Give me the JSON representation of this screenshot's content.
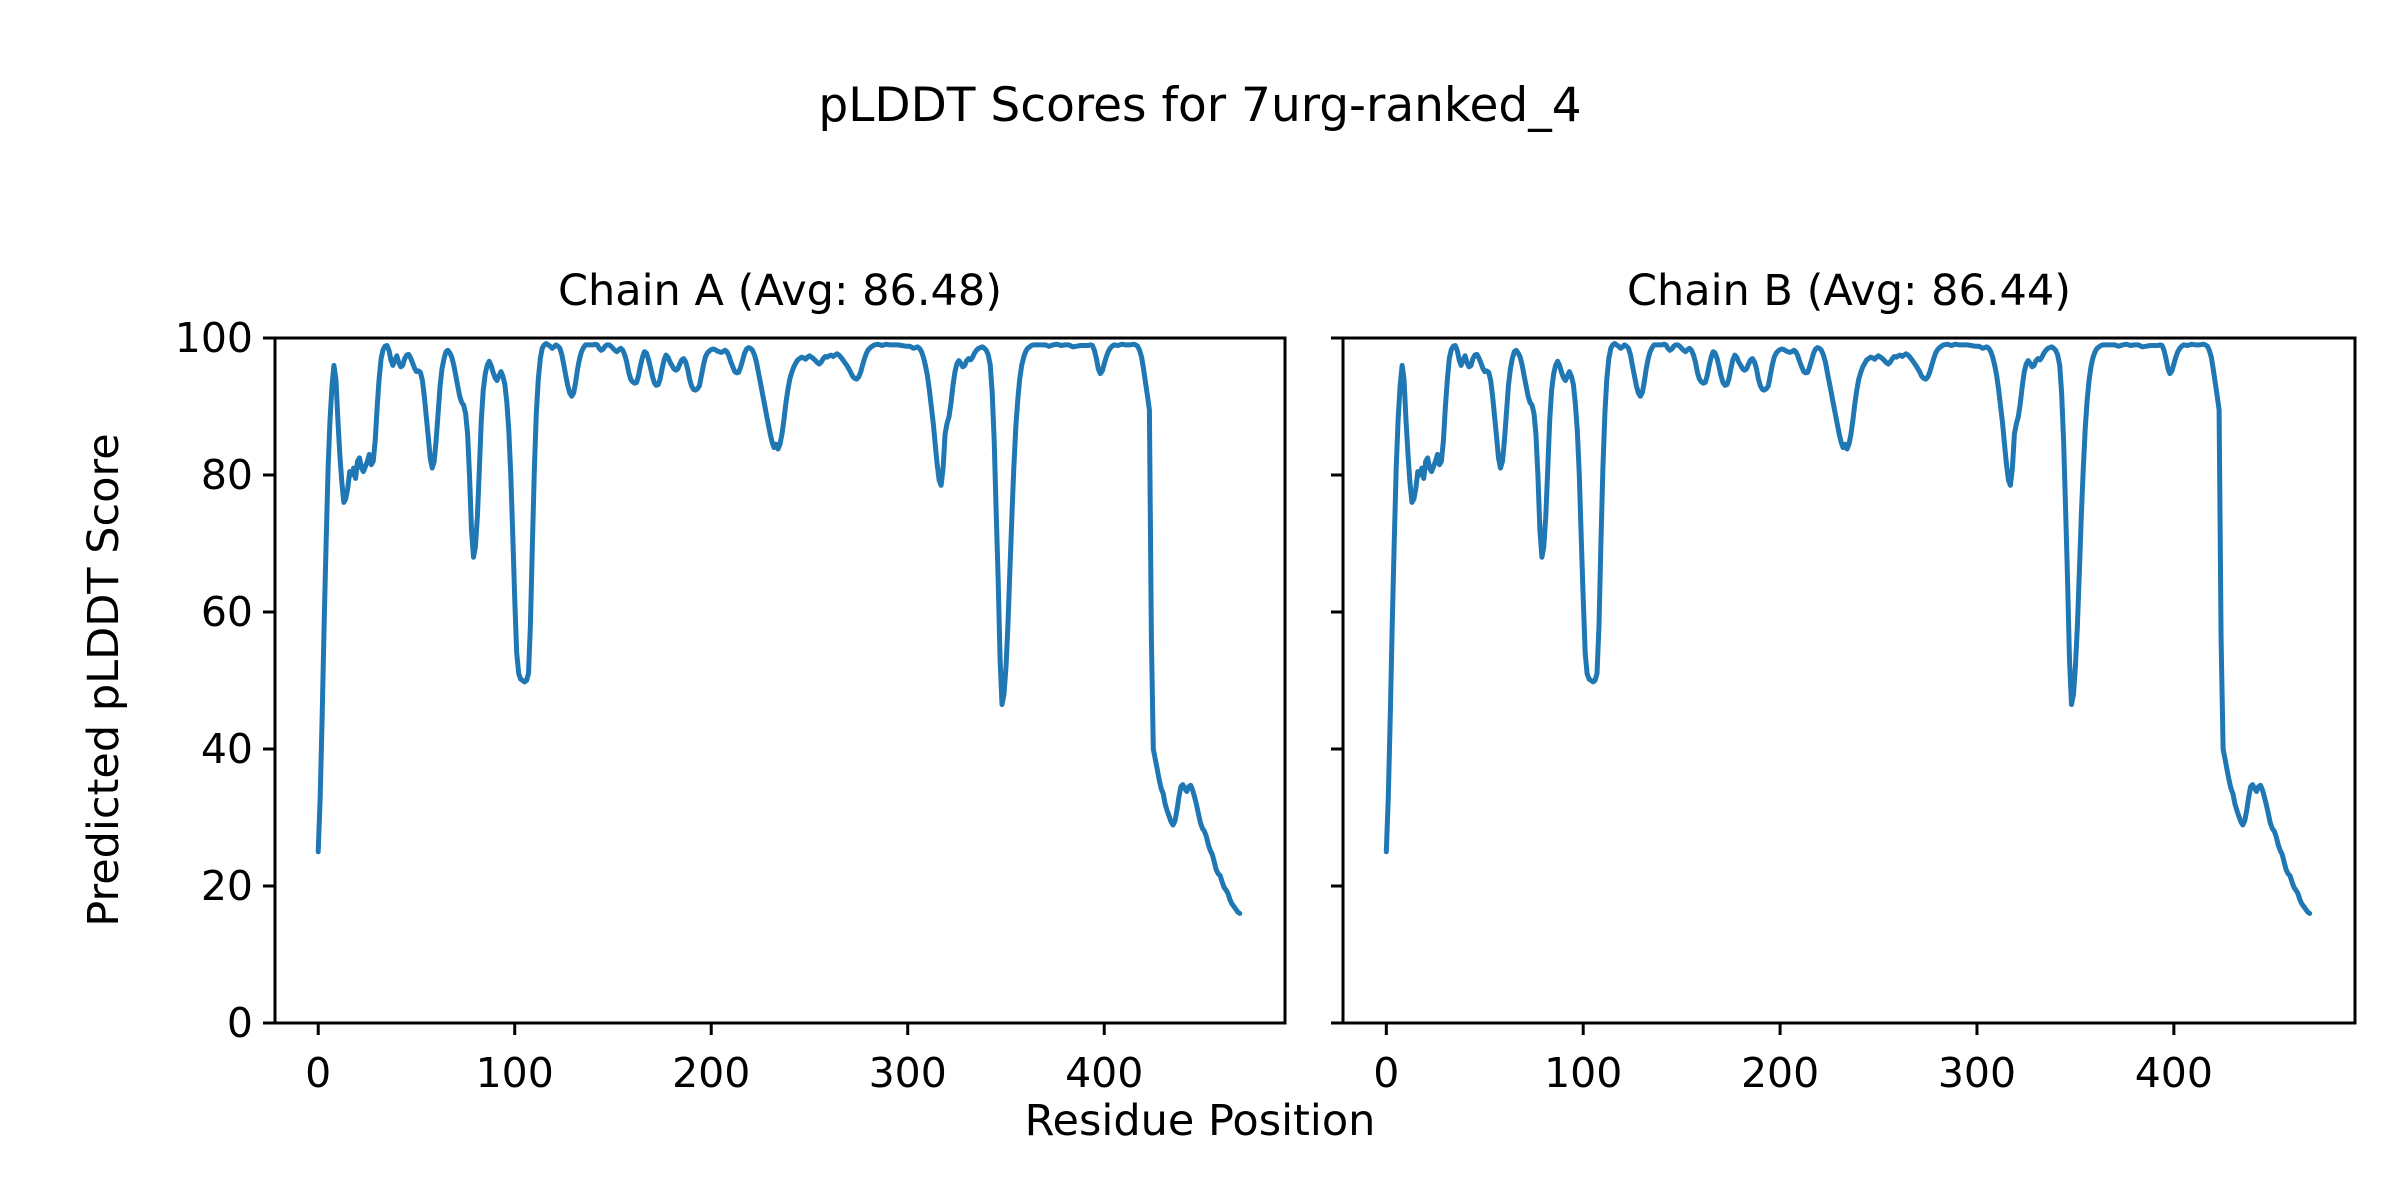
{
  "figure": {
    "background": "#ffffff",
    "text_color": "#000000"
  },
  "chart_data": {
    "type": "line",
    "suptitle": "pLDDT Scores for 7urg-ranked_4",
    "xlabel": "Residue Position",
    "ylabel": "Predicted pLDDT Score",
    "xlim": [
      -22,
      492
    ],
    "ylim": [
      0,
      100
    ],
    "xticks": [
      0,
      100,
      200,
      300,
      400
    ],
    "yticks": [
      0,
      20,
      40,
      60,
      80,
      100
    ],
    "grid": false,
    "legend": "none",
    "line_color": "#1f77b4",
    "axis_color": "#000000",
    "subplots": [
      {
        "title": "Chain A (Avg: 86.48)",
        "chain": "A",
        "avg": 86.48
      },
      {
        "title": "Chain B (Avg: 86.44)",
        "chain": "B",
        "avg": 86.44
      }
    ],
    "series_note": "pLDDT per residue; chains A and B are visually identical traces",
    "points": [
      [
        0,
        25
      ],
      [
        1,
        33
      ],
      [
        2,
        45
      ],
      [
        3,
        58
      ],
      [
        4,
        70
      ],
      [
        5,
        81
      ],
      [
        6,
        88
      ],
      [
        7,
        93
      ],
      [
        8,
        96
      ],
      [
        9,
        94
      ],
      [
        10,
        88
      ],
      [
        11,
        83
      ],
      [
        12,
        79
      ],
      [
        13,
        76
      ],
      [
        14,
        76.5
      ],
      [
        15,
        78
      ],
      [
        16,
        80.5
      ],
      [
        17,
        80
      ],
      [
        18,
        81
      ],
      [
        19,
        79.5
      ],
      [
        20,
        82
      ],
      [
        21,
        82.5
      ],
      [
        22,
        81
      ],
      [
        23,
        80.5
      ],
      [
        25,
        82
      ],
      [
        26,
        83
      ],
      [
        27,
        81.5
      ],
      [
        28,
        82
      ],
      [
        29,
        85
      ],
      [
        30,
        90
      ],
      [
        31,
        94
      ],
      [
        32,
        97
      ],
      [
        33,
        98.3
      ],
      [
        34,
        98.8
      ],
      [
        35,
        98.9
      ],
      [
        36,
        98.2
      ],
      [
        37,
        96.8
      ],
      [
        38,
        96
      ],
      [
        39,
        96.8
      ],
      [
        40,
        97.4
      ],
      [
        41,
        96.4
      ],
      [
        42,
        95.8
      ],
      [
        43,
        96
      ],
      [
        44,
        97
      ],
      [
        45,
        97.5
      ],
      [
        46,
        97.6
      ],
      [
        47,
        97.1
      ],
      [
        48,
        96.4
      ],
      [
        49,
        95.6
      ],
      [
        50,
        95.1
      ],
      [
        51,
        95.2
      ],
      [
        52,
        95
      ],
      [
        53,
        93.8
      ],
      [
        54,
        91.5
      ],
      [
        55,
        88.5
      ],
      [
        56,
        85.5
      ],
      [
        57,
        82.5
      ],
      [
        58,
        81
      ],
      [
        59,
        82
      ],
      [
        60,
        85
      ],
      [
        61,
        89
      ],
      [
        62,
        93
      ],
      [
        63,
        95.5
      ],
      [
        64,
        97
      ],
      [
        65,
        98
      ],
      [
        66,
        98.2
      ],
      [
        67,
        97.8
      ],
      [
        68,
        97.2
      ],
      [
        69,
        96
      ],
      [
        70,
        94.5
      ],
      [
        71,
        93
      ],
      [
        72,
        91.5
      ],
      [
        73,
        90.6
      ],
      [
        74,
        90.2
      ],
      [
        75,
        89
      ],
      [
        76,
        86
      ],
      [
        77,
        80
      ],
      [
        78,
        72
      ],
      [
        79,
        68
      ],
      [
        80,
        69.5
      ],
      [
        81,
        74
      ],
      [
        82,
        81
      ],
      [
        83,
        88
      ],
      [
        84,
        92.5
      ],
      [
        85,
        94.8
      ],
      [
        86,
        96
      ],
      [
        87,
        96.6
      ],
      [
        88,
        96
      ],
      [
        89,
        95
      ],
      [
        90,
        94.2
      ],
      [
        91,
        93.8
      ],
      [
        92,
        94.5
      ],
      [
        93,
        95.1
      ],
      [
        94,
        94.4
      ],
      [
        95,
        93.2
      ],
      [
        96,
        90.5
      ],
      [
        97,
        86.5
      ],
      [
        98,
        80
      ],
      [
        99,
        71
      ],
      [
        100,
        62
      ],
      [
        101,
        54
      ],
      [
        102,
        51
      ],
      [
        103,
        50.2
      ],
      [
        104,
        50
      ],
      [
        105,
        49.8
      ],
      [
        106,
        50
      ],
      [
        107,
        51
      ],
      [
        108,
        58
      ],
      [
        109,
        70
      ],
      [
        110,
        81
      ],
      [
        111,
        89
      ],
      [
        112,
        94
      ],
      [
        113,
        97
      ],
      [
        114,
        98.5
      ],
      [
        115,
        99
      ],
      [
        116,
        99.2
      ],
      [
        117,
        99
      ],
      [
        118,
        98.8
      ],
      [
        119,
        98.5
      ],
      [
        120,
        98.7
      ],
      [
        121,
        99
      ],
      [
        122,
        98.8
      ],
      [
        123,
        98.5
      ],
      [
        124,
        97.5
      ],
      [
        125,
        96
      ],
      [
        126,
        94.5
      ],
      [
        127,
        93
      ],
      [
        128,
        92
      ],
      [
        129,
        91.5
      ],
      [
        130,
        92
      ],
      [
        131,
        93.5
      ],
      [
        132,
        95.5
      ],
      [
        133,
        97
      ],
      [
        134,
        98
      ],
      [
        135,
        98.6
      ],
      [
        136,
        99
      ],
      [
        138,
        99
      ],
      [
        140,
        99
      ],
      [
        141,
        99.1
      ],
      [
        142,
        99
      ],
      [
        143,
        98.5
      ],
      [
        144,
        98.2
      ],
      [
        145,
        98.4
      ],
      [
        146,
        98.8
      ],
      [
        147,
        99
      ],
      [
        148,
        99
      ],
      [
        149,
        98.8
      ],
      [
        150,
        98.5
      ],
      [
        151,
        98.2
      ],
      [
        152,
        98
      ],
      [
        153,
        98.3
      ],
      [
        154,
        98.5
      ],
      [
        155,
        98.2
      ],
      [
        156,
        97.5
      ],
      [
        157,
        96.5
      ],
      [
        158,
        95
      ],
      [
        159,
        94
      ],
      [
        160,
        93.6
      ],
      [
        161,
        93.4
      ],
      [
        162,
        93.5
      ],
      [
        163,
        94.5
      ],
      [
        164,
        96
      ],
      [
        165,
        97.2
      ],
      [
        166,
        98
      ],
      [
        167,
        97.8
      ],
      [
        168,
        97
      ],
      [
        169,
        95.8
      ],
      [
        170,
        94.5
      ],
      [
        171,
        93.5
      ],
      [
        172,
        93.1
      ],
      [
        173,
        93.2
      ],
      [
        174,
        94
      ],
      [
        175,
        95.5
      ],
      [
        176,
        96.8
      ],
      [
        177,
        97.5
      ],
      [
        178,
        97.2
      ],
      [
        179,
        96.5
      ],
      [
        180,
        96
      ],
      [
        181,
        95.5
      ],
      [
        182,
        95.3
      ],
      [
        183,
        95.5
      ],
      [
        184,
        96.2
      ],
      [
        185,
        96.8
      ],
      [
        186,
        97
      ],
      [
        187,
        96.5
      ],
      [
        188,
        95.5
      ],
      [
        189,
        94
      ],
      [
        190,
        93
      ],
      [
        191,
        92.5
      ],
      [
        192,
        92.4
      ],
      [
        193,
        92.6
      ],
      [
        194,
        93
      ],
      [
        195,
        94.5
      ],
      [
        196,
        96
      ],
      [
        197,
        97.2
      ],
      [
        198,
        97.8
      ],
      [
        199,
        98.1
      ],
      [
        200,
        98.3
      ],
      [
        201,
        98.4
      ],
      [
        202,
        98.3
      ],
      [
        203,
        98.1
      ],
      [
        204,
        98
      ],
      [
        205,
        97.9
      ],
      [
        206,
        98
      ],
      [
        207,
        98.2
      ],
      [
        208,
        98
      ],
      [
        209,
        97.4
      ],
      [
        210,
        96.5
      ],
      [
        211,
        95.8
      ],
      [
        212,
        95.1
      ],
      [
        213,
        94.9
      ],
      [
        214,
        95
      ],
      [
        215,
        95.8
      ],
      [
        216,
        96.8
      ],
      [
        217,
        97.8
      ],
      [
        218,
        98.4
      ],
      [
        219,
        98.6
      ],
      [
        220,
        98.5
      ],
      [
        221,
        98.2
      ],
      [
        222,
        97.5
      ],
      [
        223,
        96.5
      ],
      [
        224,
        95
      ],
      [
        225,
        93.5
      ],
      [
        226,
        92
      ],
      [
        227,
        90.5
      ],
      [
        228,
        89
      ],
      [
        229,
        87.5
      ],
      [
        230,
        86
      ],
      [
        231,
        84.8
      ],
      [
        232,
        84
      ],
      [
        233,
        84.5
      ],
      [
        234,
        83.8
      ],
      [
        235,
        84.5
      ],
      [
        236,
        86
      ],
      [
        237,
        88
      ],
      [
        238,
        90.5
      ],
      [
        239,
        92.5
      ],
      [
        240,
        94
      ],
      [
        241,
        95
      ],
      [
        242,
        95.8
      ],
      [
        243,
        96.3
      ],
      [
        244,
        96.8
      ],
      [
        245,
        97
      ],
      [
        246,
        97.2
      ],
      [
        247,
        97.1
      ],
      [
        248,
        96.9
      ],
      [
        249,
        97.2
      ],
      [
        250,
        97.4
      ],
      [
        251,
        97.2
      ],
      [
        252,
        97
      ],
      [
        253,
        96.7
      ],
      [
        254,
        96.4
      ],
      [
        255,
        96.2
      ],
      [
        256,
        96.5
      ],
      [
        257,
        97
      ],
      [
        258,
        97.3
      ],
      [
        259,
        97.2
      ],
      [
        260,
        97.4
      ],
      [
        261,
        97.5
      ],
      [
        262,
        97.3
      ],
      [
        263,
        97.5
      ],
      [
        264,
        97.7
      ],
      [
        265,
        97.5
      ],
      [
        266,
        97.2
      ],
      [
        267,
        96.8
      ],
      [
        268,
        96.4
      ],
      [
        269,
        96
      ],
      [
        270,
        95.5
      ],
      [
        271,
        95
      ],
      [
        272,
        94.4
      ],
      [
        273,
        94.1
      ],
      [
        274,
        94
      ],
      [
        275,
        94.3
      ],
      [
        276,
        95
      ],
      [
        277,
        96
      ],
      [
        278,
        97
      ],
      [
        279,
        97.8
      ],
      [
        280,
        98.3
      ],
      [
        281,
        98.6
      ],
      [
        282,
        98.8
      ],
      [
        283,
        99
      ],
      [
        285,
        99.1
      ],
      [
        287,
        98.9
      ],
      [
        289,
        99.1
      ],
      [
        291,
        99
      ],
      [
        293,
        99
      ],
      [
        295,
        99
      ],
      [
        297,
        98.9
      ],
      [
        299,
        98.8
      ],
      [
        301,
        98.8
      ],
      [
        303,
        98.5
      ],
      [
        305,
        98.7
      ],
      [
        306,
        98.5
      ],
      [
        307,
        98
      ],
      [
        308,
        97.2
      ],
      [
        309,
        96
      ],
      [
        310,
        94.5
      ],
      [
        311,
        92.5
      ],
      [
        312,
        90
      ],
      [
        313,
        87.5
      ],
      [
        314,
        84.5
      ],
      [
        315,
        81.5
      ],
      [
        316,
        79.2
      ],
      [
        317,
        78.5
      ],
      [
        318,
        81
      ],
      [
        319,
        86
      ],
      [
        320,
        87.5
      ],
      [
        321,
        88.5
      ],
      [
        322,
        90.5
      ],
      [
        323,
        93
      ],
      [
        324,
        95
      ],
      [
        325,
        96.2
      ],
      [
        326,
        96.7
      ],
      [
        327,
        96.3
      ],
      [
        328,
        95.8
      ],
      [
        329,
        96
      ],
      [
        330,
        96.7
      ],
      [
        331,
        97
      ],
      [
        332,
        96.8
      ],
      [
        333,
        97.2
      ],
      [
        334,
        97.8
      ],
      [
        335,
        98.2
      ],
      [
        336,
        98.5
      ],
      [
        337,
        98.6
      ],
      [
        338,
        98.7
      ],
      [
        339,
        98.5
      ],
      [
        340,
        98.2
      ],
      [
        341,
        97.5
      ],
      [
        342,
        96
      ],
      [
        343,
        92
      ],
      [
        344,
        85
      ],
      [
        345,
        75
      ],
      [
        346,
        65
      ],
      [
        347,
        53
      ],
      [
        348,
        46.5
      ],
      [
        349,
        48
      ],
      [
        350,
        52
      ],
      [
        351,
        58
      ],
      [
        352,
        66
      ],
      [
        353,
        74
      ],
      [
        354,
        81
      ],
      [
        355,
        87
      ],
      [
        356,
        91
      ],
      [
        357,
        94
      ],
      [
        358,
        96
      ],
      [
        359,
        97.2
      ],
      [
        360,
        98
      ],
      [
        361,
        98.5
      ],
      [
        362,
        98.7
      ],
      [
        363,
        98.9
      ],
      [
        364,
        99
      ],
      [
        366,
        99
      ],
      [
        368,
        99
      ],
      [
        370,
        99
      ],
      [
        372,
        98.8
      ],
      [
        374,
        99
      ],
      [
        376,
        99.1
      ],
      [
        378,
        98.9
      ],
      [
        380,
        99
      ],
      [
        382,
        99
      ],
      [
        384,
        98.7
      ],
      [
        386,
        98.8
      ],
      [
        388,
        98.9
      ],
      [
        390,
        98.9
      ],
      [
        392,
        98.9
      ],
      [
        393,
        99
      ],
      [
        394,
        98.9
      ],
      [
        395,
        98.2
      ],
      [
        396,
        97
      ],
      [
        397,
        95.5
      ],
      [
        398,
        94.8
      ],
      [
        399,
        95.2
      ],
      [
        400,
        96.2
      ],
      [
        401,
        97.2
      ],
      [
        402,
        98
      ],
      [
        403,
        98.5
      ],
      [
        404,
        98.8
      ],
      [
        405,
        99
      ],
      [
        407,
        98.9
      ],
      [
        409,
        99.1
      ],
      [
        411,
        99
      ],
      [
        413,
        99
      ],
      [
        415,
        99.1
      ],
      [
        416,
        99
      ],
      [
        417,
        98.8
      ],
      [
        418,
        98.2
      ],
      [
        419,
        97.2
      ],
      [
        420,
        95.5
      ],
      [
        421,
        93.5
      ],
      [
        422,
        91.5
      ],
      [
        423,
        89.5
      ],
      [
        424,
        56
      ],
      [
        425,
        40
      ],
      [
        426,
        38.5
      ],
      [
        427,
        37
      ],
      [
        428,
        35.5
      ],
      [
        429,
        34.2
      ],
      [
        430,
        33.5
      ],
      [
        431,
        32
      ],
      [
        432,
        31
      ],
      [
        433,
        30.2
      ],
      [
        434,
        29.4
      ],
      [
        435,
        28.9
      ],
      [
        436,
        29.5
      ],
      [
        437,
        31
      ],
      [
        438,
        33
      ],
      [
        439,
        34.5
      ],
      [
        440,
        34.8
      ],
      [
        441,
        34.2
      ],
      [
        442,
        33.8
      ],
      [
        443,
        34.5
      ],
      [
        444,
        34.7
      ],
      [
        445,
        34
      ],
      [
        446,
        33
      ],
      [
        447,
        31.8
      ],
      [
        448,
        30.5
      ],
      [
        449,
        29.2
      ],
      [
        450,
        28.4
      ],
      [
        451,
        28
      ],
      [
        452,
        27.2
      ],
      [
        453,
        26
      ],
      [
        454,
        25.2
      ],
      [
        455,
        24.6
      ],
      [
        456,
        23.5
      ],
      [
        457,
        22.4
      ],
      [
        458,
        21.8
      ],
      [
        459,
        21.5
      ],
      [
        460,
        20.6
      ],
      [
        461,
        19.8
      ],
      [
        462,
        19.4
      ],
      [
        463,
        18.9
      ],
      [
        464,
        18
      ],
      [
        465,
        17.4
      ],
      [
        466,
        17
      ],
      [
        467,
        16.6
      ],
      [
        468,
        16.2
      ],
      [
        469,
        16
      ]
    ]
  }
}
